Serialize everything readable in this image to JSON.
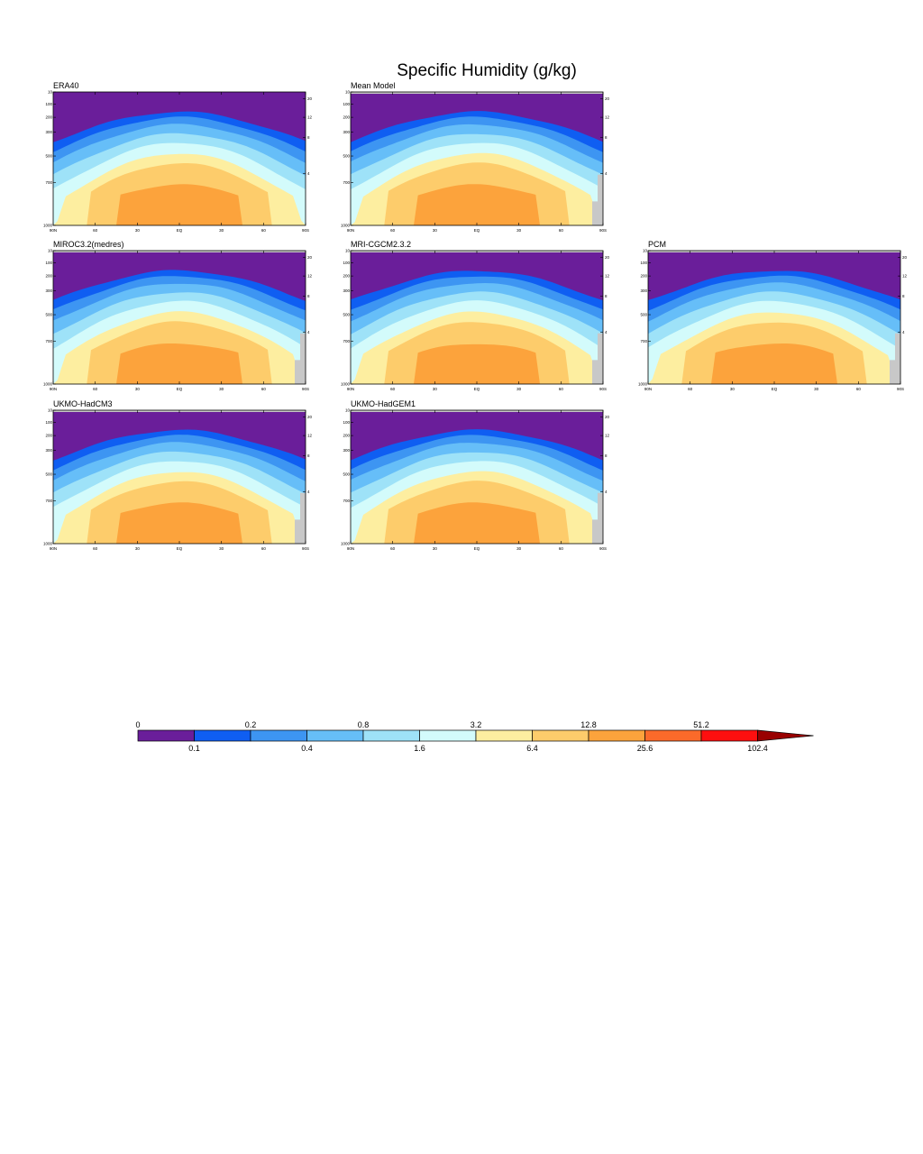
{
  "title": "Specific Humidity (g/kg)",
  "colors": {
    "levels": [
      "#6a1e9a",
      "#0f5ef2",
      "#3d95f2",
      "#66bef8",
      "#9ee2f8",
      "#d3fbfb",
      "#fdeea0",
      "#fdcc6b",
      "#fca33c",
      "#fb6a2a",
      "#fe0f0f",
      "#990000"
    ],
    "missing": "#c8c8c8"
  },
  "colorbar": {
    "top_labels": [
      "0",
      "0.2",
      "0.8",
      "3.2",
      "12.8",
      "51.2"
    ],
    "bottom_labels": [
      "0.1",
      "0.4",
      "1.6",
      "6.4",
      "25.6",
      "102.4"
    ]
  },
  "axes": {
    "x_ticks": [
      "90N",
      "60",
      "30",
      "EQ",
      "30",
      "60",
      "90S"
    ],
    "y_ticks": [
      "10",
      "100",
      "200",
      "300",
      "500",
      "700",
      "1000"
    ],
    "y_right_ticks": [
      "20",
      "12",
      "8",
      "4"
    ]
  },
  "chart_data": {
    "type": "contour",
    "variable": "Specific Humidity (g/kg)",
    "x_range": [
      "90N",
      "90S"
    ],
    "y_range_hPa": [
      1000,
      10
    ],
    "contour_levels": [
      0,
      0.1,
      0.2,
      0.4,
      0.8,
      1.6,
      3.2,
      6.4,
      12.8,
      25.6,
      51.2,
      102.4
    ],
    "panels": [
      {
        "name": "ERA40",
        "max_level": 12.8,
        "missing": "none"
      },
      {
        "name": "Mean Model",
        "max_level": 12.8,
        "missing": "south"
      },
      {
        "name": "MIROC3.2(medres)",
        "max_level": 12.8,
        "missing": "south"
      },
      {
        "name": "MRI-CGCM2.3.2",
        "max_level": 12.8,
        "missing": "south"
      },
      {
        "name": "PCM",
        "max_level": 12.8,
        "missing": "south"
      },
      {
        "name": "UKMO-HadCM3",
        "max_level": 12.8,
        "missing": "south"
      },
      {
        "name": "UKMO-HadGEM1",
        "max_level": 12.8,
        "missing": "south"
      }
    ]
  }
}
